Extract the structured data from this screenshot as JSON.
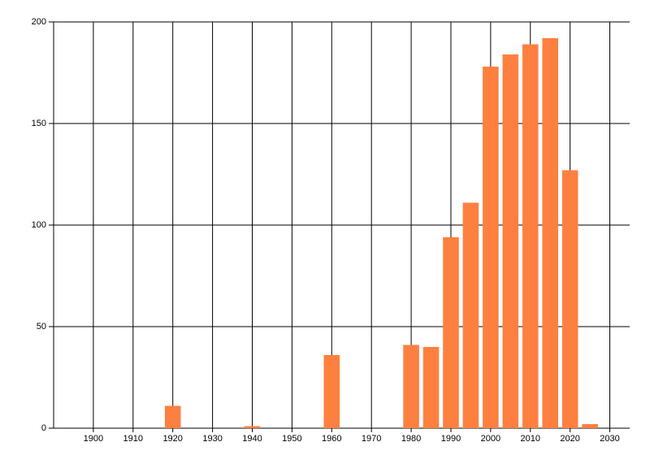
{
  "chart_data": {
    "type": "bar",
    "x": [
      1920,
      1940,
      1960,
      1980,
      1985,
      1990,
      1995,
      2000,
      2005,
      2010,
      2015,
      2020,
      2025
    ],
    "values": [
      11,
      1,
      36,
      41,
      40,
      94,
      111,
      178,
      184,
      189,
      192,
      127,
      2
    ],
    "color": "#fe8040",
    "xlim": [
      1890,
      2035
    ],
    "xticks": [
      1900,
      1910,
      1920,
      1930,
      1940,
      1950,
      1960,
      1970,
      1980,
      1990,
      2000,
      2010,
      2020,
      2030
    ],
    "ylim": [
      0,
      200
    ],
    "yticks": [
      0,
      50,
      100,
      150,
      200
    ],
    "grid": true
  }
}
